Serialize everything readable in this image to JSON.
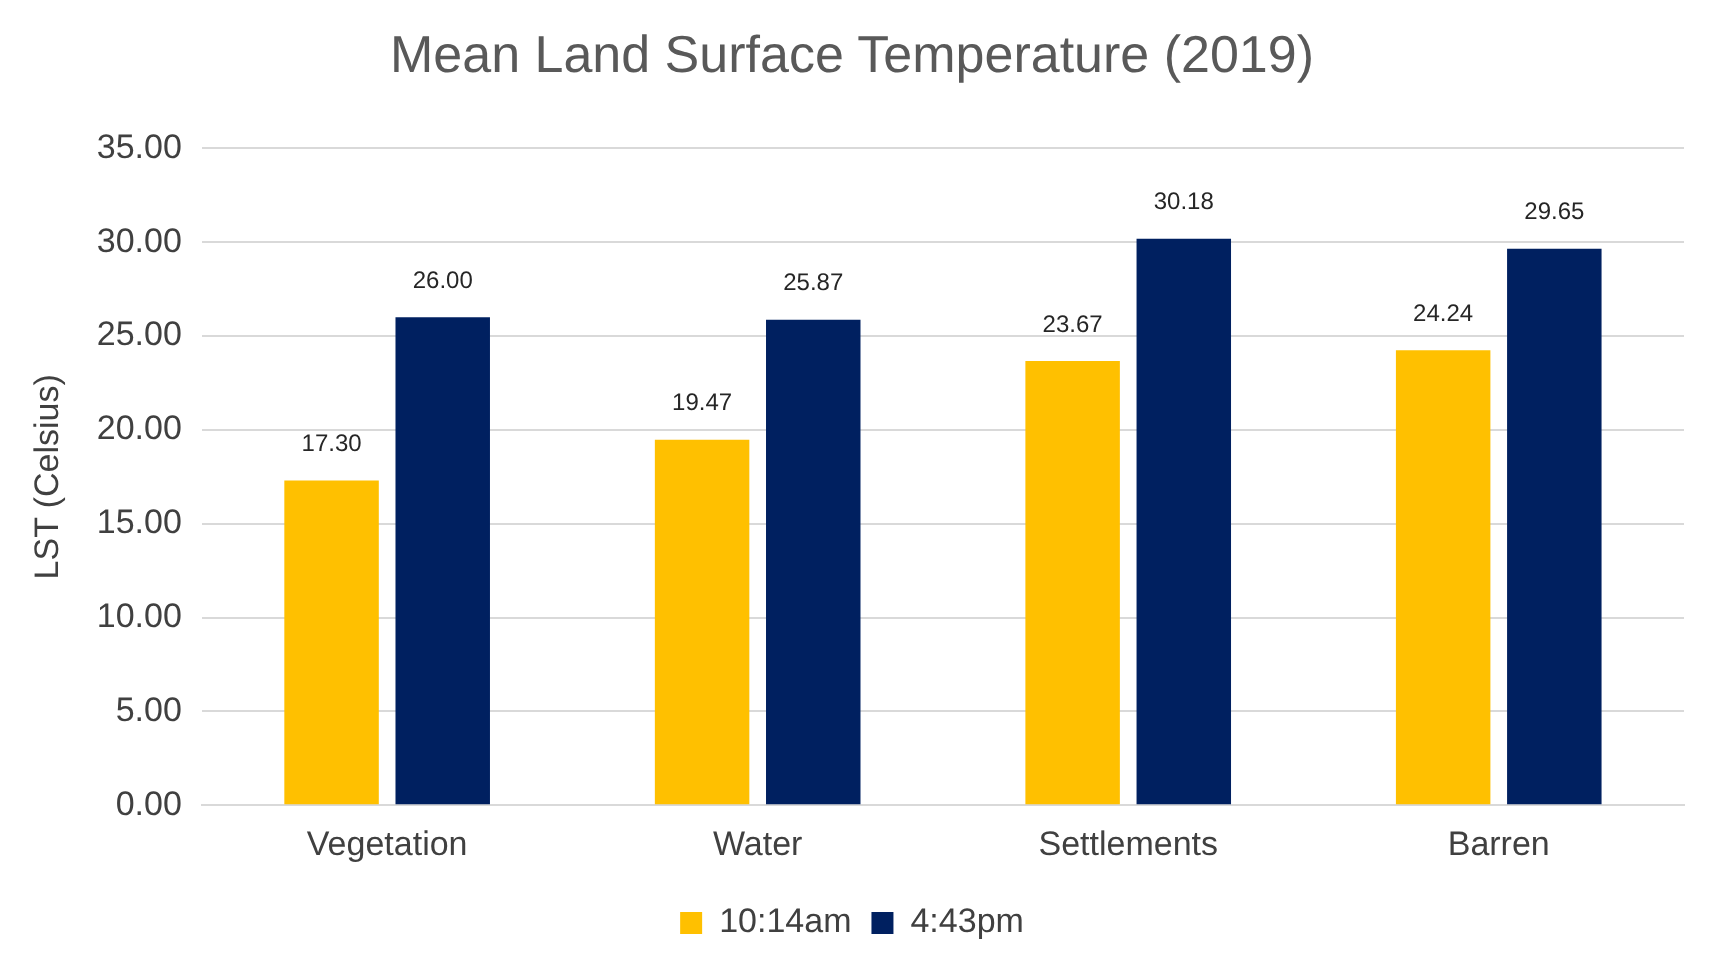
{
  "chart_data": {
    "type": "bar",
    "title": "Mean Land Surface Temperature (2019)",
    "ylabel": "LST (Celsius)",
    "categories": [
      "Vegetation",
      "Water",
      "Settlements",
      "Barren"
    ],
    "series": [
      {
        "name": "10:14am",
        "color": "#ffc000",
        "values": [
          17.3,
          19.47,
          23.67,
          24.24
        ],
        "value_labels": [
          "17.30",
          "19.47",
          "23.67",
          "24.24"
        ]
      },
      {
        "name": "4:43pm",
        "color": "#002060",
        "values": [
          26.0,
          25.87,
          30.18,
          29.65
        ],
        "value_labels": [
          "26.00",
          "25.87",
          "30.18",
          "29.65"
        ]
      }
    ],
    "ylim": [
      0,
      35
    ],
    "yticks": [
      {
        "value": 0,
        "label": "0.00"
      },
      {
        "value": 5,
        "label": "5.00"
      },
      {
        "value": 10,
        "label": "10.00"
      },
      {
        "value": 15,
        "label": "15.00"
      },
      {
        "value": 20,
        "label": "20.00"
      },
      {
        "value": 25,
        "label": "25.00"
      },
      {
        "value": 30,
        "label": "30.00"
      },
      {
        "value": 35,
        "label": "35.00"
      }
    ],
    "grid": "y",
    "legend": "bottom"
  }
}
